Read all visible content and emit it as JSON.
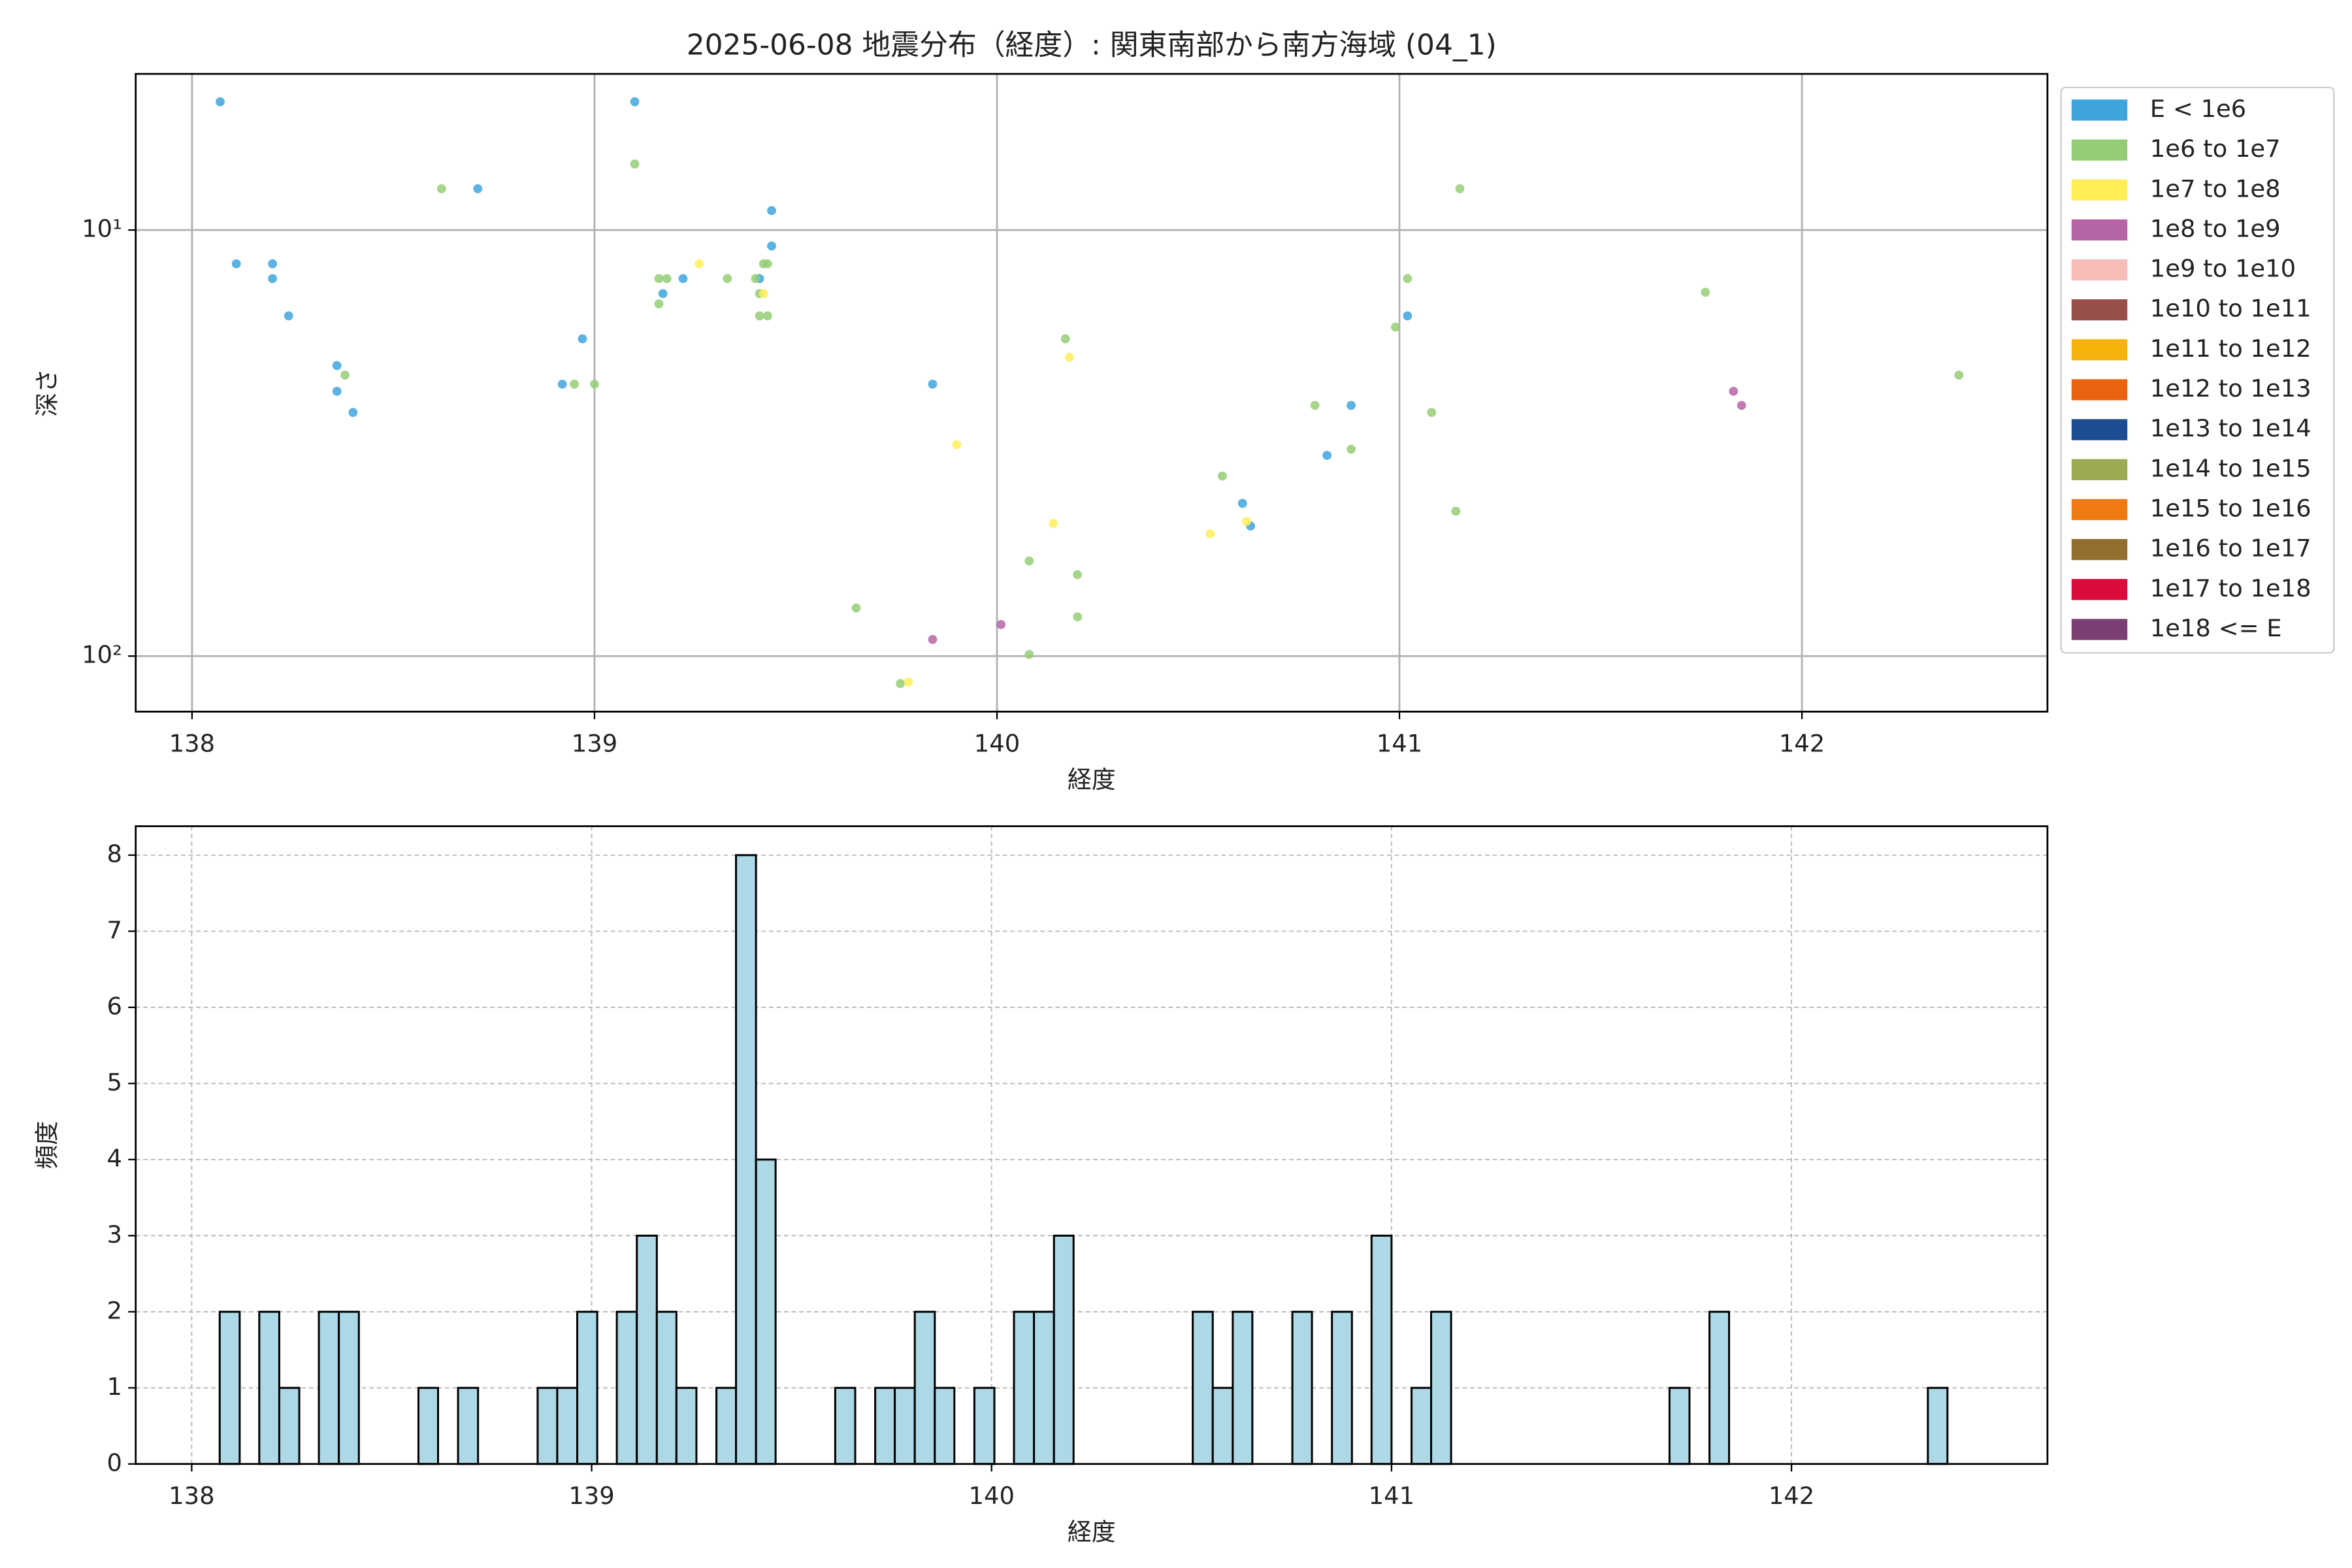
{
  "chart_data": [
    {
      "type": "scatter",
      "title": "2025-06-08 地震分布（経度）: 関東南部から南方海域 (04_1)",
      "xlabel": "経度",
      "ylabel": "深さ",
      "xlim": [
        137.86,
        142.61
      ],
      "ylim": [
        135,
        4.3
      ],
      "yscale": "log",
      "xticks": [
        138,
        139,
        140,
        141,
        142
      ],
      "yticks": [
        {
          "value": 10,
          "label": "10¹"
        },
        {
          "value": 100,
          "label": "10²"
        }
      ],
      "grid": true,
      "legend": "outside right",
      "series": [
        {
          "name": "E < 1e6",
          "color": "#3fa4dc",
          "x": [
            138.07,
            138.11,
            138.2,
            138.2,
            138.24,
            138.36,
            138.36,
            138.4,
            138.71,
            138.92,
            138.97,
            139.1,
            139.17,
            139.22,
            139.41,
            139.44,
            139.44,
            139.84,
            140.61,
            140.63,
            140.82,
            140.88,
            141.02
          ],
          "values": [
            5.0,
            12.0,
            12.0,
            13.0,
            15.9,
            20.8,
            23.9,
            26.8,
            8.0,
            23.0,
            18.0,
            5.0,
            14.1,
            13.0,
            13.0,
            9.0,
            10.9,
            23.0,
            43.8,
            49.5,
            33.8,
            25.8,
            15.9
          ]
        },
        {
          "name": "1e6 to 1e7",
          "color": "#95cc77",
          "x": [
            138.38,
            138.62,
            138.95,
            139.0,
            139.1,
            139.16,
            139.16,
            139.18,
            139.33,
            139.4,
            139.42,
            139.43,
            139.41,
            139.41,
            139.43,
            139.65,
            139.76,
            140.08,
            140.08,
            140.17,
            140.2,
            140.2,
            140.56,
            140.79,
            140.88,
            140.99,
            141.02,
            141.08,
            141.14,
            141.15,
            141.76,
            142.39
          ],
          "values": [
            21.9,
            8.0,
            23.0,
            23.0,
            7.0,
            14.9,
            13.0,
            13.0,
            13.0,
            13.0,
            12.0,
            12.0,
            14.1,
            15.9,
            15.9,
            77.1,
            116,
            99.1,
            59.8,
            18.0,
            64.4,
            80.9,
            37.8,
            25.8,
            32.7,
            16.9,
            13.0,
            26.8,
            45.7,
            8.0,
            14.0,
            21.9
          ]
        },
        {
          "name": "1e7 to 1e8",
          "color": "#ffee58",
          "x": [
            139.26,
            139.42,
            139.78,
            139.9,
            140.14,
            140.18,
            140.53,
            140.62
          ],
          "values": [
            12.0,
            14.1,
            115,
            31.9,
            48.8,
            19.9,
            51.6,
            48.3
          ]
        },
        {
          "name": "1e8 to 1e9",
          "color": "#b565a6",
          "x": [
            139.84,
            140.01,
            141.83,
            141.85
          ],
          "values": [
            91.4,
            84.3,
            23.9,
            25.8
          ]
        },
        {
          "name": "1e9 to 1e10",
          "color": "#f5bcb8",
          "x": [],
          "values": []
        },
        {
          "name": "1e10 to 1e11",
          "color": "#975049",
          "x": [],
          "values": []
        },
        {
          "name": "1e11 to 1e12",
          "color": "#f5b30c",
          "x": [],
          "values": []
        },
        {
          "name": "1e12 to 1e13",
          "color": "#ea6110",
          "x": [],
          "values": []
        },
        {
          "name": "1e13 to 1e14",
          "color": "#1d4c93",
          "x": [],
          "values": []
        },
        {
          "name": "1e14 to 1e15",
          "color": "#9bab52",
          "x": [],
          "values": []
        },
        {
          "name": "1e15 to 1e16",
          "color": "#ef7a12",
          "x": [],
          "values": []
        },
        {
          "name": "1e16 to 1e17",
          "color": "#936e2e",
          "x": [],
          "values": []
        },
        {
          "name": "1e17 to 1e18",
          "color": "#dc0b3d",
          "x": [],
          "values": []
        },
        {
          "name": "1e18 <= E",
          "color": "#7a3f73",
          "x": [],
          "values": []
        }
      ]
    },
    {
      "type": "histogram",
      "xlabel": "経度",
      "ylabel": "頻度",
      "xlim": [
        137.86,
        142.64
      ],
      "ylim": [
        0,
        8.38
      ],
      "xticks": [
        138,
        139,
        140,
        141,
        142
      ],
      "yticks": [
        0,
        1,
        2,
        3,
        4,
        5,
        6,
        7,
        8
      ],
      "grid": true,
      "grid_style": "dashed",
      "color": "#add8e6",
      "edgecolor": "#000000",
      "bins": [
        138.07,
        138.12,
        138.169,
        138.219,
        138.269,
        138.318,
        138.368,
        138.418,
        138.467,
        138.517,
        138.567,
        138.616,
        138.666,
        138.716,
        138.765,
        138.815,
        138.865,
        138.914,
        138.964,
        139.014,
        139.063,
        139.113,
        139.163,
        139.212,
        139.262,
        139.312,
        139.361,
        139.411,
        139.46,
        139.51,
        139.56,
        139.609,
        139.659,
        139.709,
        139.758,
        139.808,
        139.858,
        139.907,
        139.957,
        140.007,
        140.056,
        140.106,
        140.156,
        140.205,
        140.255,
        140.305,
        140.354,
        140.404,
        140.454,
        140.503,
        140.553,
        140.603,
        140.652,
        140.702,
        140.752,
        140.801,
        140.851,
        140.901,
        140.95,
        141.0,
        141.05,
        141.099,
        141.149,
        141.199,
        141.248,
        141.298,
        141.348,
        141.397,
        141.447,
        141.497,
        141.546,
        141.596,
        141.646,
        141.695,
        141.745,
        141.795,
        141.844,
        141.894,
        141.944,
        141.993,
        142.043,
        142.093,
        142.142,
        142.192,
        142.242,
        142.291,
        142.341,
        142.39
      ],
      "values": [
        2,
        0,
        2,
        1,
        0,
        2,
        2,
        0,
        0,
        0,
        1,
        0,
        1,
        0,
        0,
        0,
        1,
        1,
        2,
        0,
        2,
        3,
        2,
        1,
        0,
        1,
        8,
        4,
        0,
        0,
        0,
        1,
        0,
        1,
        1,
        2,
        1,
        0,
        1,
        0,
        2,
        2,
        3,
        0,
        0,
        0,
        0,
        0,
        0,
        2,
        1,
        2,
        0,
        0,
        2,
        0,
        2,
        0,
        3,
        0,
        1,
        2,
        0,
        0,
        0,
        0,
        0,
        0,
        0,
        0,
        0,
        0,
        0,
        1,
        0,
        2,
        0,
        0,
        0,
        0,
        0,
        0,
        0,
        0,
        0,
        0,
        1
      ]
    }
  ]
}
